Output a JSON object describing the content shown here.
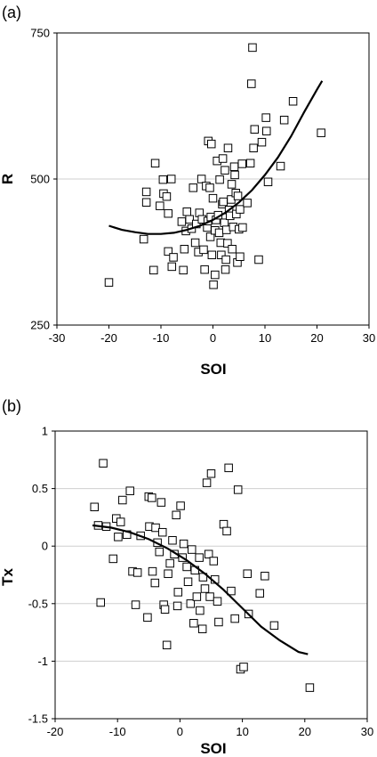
{
  "chart_data": [
    {
      "panel_label": "(a)",
      "type": "scatter",
      "xlabel": "SOI",
      "ylabel": "R",
      "xlim": [
        -30,
        30
      ],
      "ylim": [
        250,
        750
      ],
      "xticks": [
        -30,
        -20,
        -10,
        0,
        10,
        20,
        30
      ],
      "yticks": [
        250,
        500,
        750
      ],
      "grid": "horizontal",
      "points": [
        [
          -20.0,
          323
        ],
        [
          -13.3,
          397
        ],
        [
          -12.8,
          460
        ],
        [
          -12.8,
          478
        ],
        [
          -11.4,
          344
        ],
        [
          -11.1,
          527
        ],
        [
          -10.2,
          454
        ],
        [
          -9.6,
          499
        ],
        [
          -9.5,
          475
        ],
        [
          -8.9,
          470
        ],
        [
          -8.6,
          376
        ],
        [
          -8.6,
          441
        ],
        [
          -8.0,
          500
        ],
        [
          -7.9,
          350
        ],
        [
          -7.6,
          366
        ],
        [
          -6.0,
          427
        ],
        [
          -5.7,
          344
        ],
        [
          -5.5,
          380
        ],
        [
          -5.2,
          411
        ],
        [
          -5.0,
          444
        ],
        [
          -4.5,
          431
        ],
        [
          -4.1,
          415
        ],
        [
          -3.8,
          485
        ],
        [
          -3.4,
          391
        ],
        [
          -3.2,
          423
        ],
        [
          -2.8,
          375
        ],
        [
          -2.6,
          442
        ],
        [
          -2.2,
          500
        ],
        [
          -2.1,
          431
        ],
        [
          -1.8,
          379
        ],
        [
          -1.6,
          345
        ],
        [
          -1.3,
          488
        ],
        [
          -1.1,
          417
        ],
        [
          -1.0,
          428
        ],
        [
          -0.9,
          565
        ],
        [
          -0.6,
          485
        ],
        [
          -0.5,
          401
        ],
        [
          -0.4,
          435
        ],
        [
          -0.3,
          560
        ],
        [
          -0.2,
          370
        ],
        [
          0.0,
          467
        ],
        [
          0.1,
          319
        ],
        [
          0.4,
          336
        ],
        [
          0.4,
          412
        ],
        [
          0.6,
          430
        ],
        [
          0.8,
          531
        ],
        [
          1.0,
          438
        ],
        [
          1.2,
          408
        ],
        [
          1.3,
          499
        ],
        [
          1.5,
          391
        ],
        [
          1.6,
          370
        ],
        [
          1.8,
          457
        ],
        [
          1.9,
          535
        ],
        [
          2.0,
          461
        ],
        [
          2.2,
          425
        ],
        [
          2.3,
          515
        ],
        [
          2.4,
          345
        ],
        [
          2.5,
          362
        ],
        [
          2.6,
          413
        ],
        [
          2.8,
          390
        ],
        [
          2.9,
          553
        ],
        [
          3.1,
          447
        ],
        [
          3.3,
          437
        ],
        [
          3.5,
          465
        ],
        [
          3.6,
          491
        ],
        [
          3.7,
          380
        ],
        [
          3.9,
          418
        ],
        [
          4.1,
          521
        ],
        [
          4.2,
          507
        ],
        [
          4.4,
          476
        ],
        [
          4.5,
          440
        ],
        [
          4.7,
          357
        ],
        [
          4.8,
          471
        ],
        [
          5.0,
          414
        ],
        [
          5.2,
          448
        ],
        [
          5.2,
          367
        ],
        [
          5.6,
          526
        ],
        [
          5.7,
          417
        ],
        [
          6.6,
          459
        ],
        [
          7.2,
          527
        ],
        [
          7.4,
          663
        ],
        [
          7.6,
          725
        ],
        [
          7.8,
          553
        ],
        [
          8.0,
          585
        ],
        [
          8.8,
          362
        ],
        [
          9.4,
          563
        ],
        [
          10.2,
          605
        ],
        [
          10.3,
          582
        ],
        [
          10.6,
          495
        ],
        [
          13.0,
          522
        ],
        [
          13.7,
          601
        ],
        [
          15.4,
          633
        ],
        [
          20.8,
          579
        ]
      ],
      "fit": [
        [
          -20.0,
          420
        ],
        [
          -17.5,
          413
        ],
        [
          -15.0,
          409
        ],
        [
          -12.5,
          406
        ],
        [
          -10.0,
          406
        ],
        [
          -7.5,
          408
        ],
        [
          -5.0,
          413
        ],
        [
          -2.5,
          420
        ],
        [
          0.0,
          430
        ],
        [
          2.5,
          443
        ],
        [
          5.0,
          460
        ],
        [
          7.5,
          481
        ],
        [
          10.0,
          507
        ],
        [
          12.5,
          537
        ],
        [
          15.0,
          573
        ],
        [
          17.5,
          614
        ],
        [
          20.0,
          653
        ],
        [
          21.0,
          668
        ]
      ]
    },
    {
      "panel_label": "(b)",
      "type": "scatter",
      "xlabel": "SOI",
      "ylabel": "Tx",
      "xlim": [
        -20,
        30
      ],
      "ylim": [
        -1.5,
        1
      ],
      "xticks": [
        -20,
        -10,
        0,
        10,
        20,
        30
      ],
      "yticks": [
        -1.5,
        -1,
        -0.5,
        0,
        0.5,
        1
      ],
      "grid": "horizontal",
      "points": [
        [
          -13.7,
          0.34
        ],
        [
          -13.1,
          0.18
        ],
        [
          -12.7,
          -0.49
        ],
        [
          -12.3,
          0.72
        ],
        [
          -11.8,
          0.17
        ],
        [
          -10.7,
          -0.11
        ],
        [
          -10.2,
          0.24
        ],
        [
          -9.9,
          0.08
        ],
        [
          -9.5,
          0.21
        ],
        [
          -9.2,
          0.4
        ],
        [
          -8.5,
          0.1
        ],
        [
          -8.0,
          0.48
        ],
        [
          -7.6,
          -0.22
        ],
        [
          -7.1,
          -0.51
        ],
        [
          -6.8,
          -0.23
        ],
        [
          -6.3,
          0.09
        ],
        [
          -5.2,
          -0.62
        ],
        [
          -5.0,
          0.43
        ],
        [
          -4.9,
          0.17
        ],
        [
          -4.5,
          0.42
        ],
        [
          -4.4,
          -0.22
        ],
        [
          -4.0,
          -0.32
        ],
        [
          -3.9,
          0.16
        ],
        [
          -3.6,
          0.03
        ],
        [
          -3.3,
          -0.05
        ],
        [
          -3.0,
          0.38
        ],
        [
          -2.8,
          0.12
        ],
        [
          -2.6,
          -0.51
        ],
        [
          -2.4,
          -0.55
        ],
        [
          -2.1,
          -0.86
        ],
        [
          -1.9,
          -0.24
        ],
        [
          -1.6,
          -0.15
        ],
        [
          -1.2,
          0.05
        ],
        [
          -0.9,
          -0.07
        ],
        [
          -0.6,
          0.27
        ],
        [
          -0.4,
          -0.52
        ],
        [
          -0.3,
          -0.4
        ],
        [
          0.1,
          0.35
        ],
        [
          0.4,
          -0.1
        ],
        [
          0.6,
          0.02
        ],
        [
          1.1,
          -0.18
        ],
        [
          1.3,
          -0.31
        ],
        [
          1.7,
          -0.5
        ],
        [
          1.9,
          -0.03
        ],
        [
          2.2,
          -0.67
        ],
        [
          2.4,
          -0.21
        ],
        [
          2.7,
          -0.44
        ],
        [
          3.1,
          -0.1
        ],
        [
          3.2,
          -0.56
        ],
        [
          3.6,
          -0.72
        ],
        [
          3.7,
          -0.27
        ],
        [
          4.0,
          -0.37
        ],
        [
          4.3,
          0.55
        ],
        [
          4.6,
          -0.07
        ],
        [
          4.8,
          -0.44
        ],
        [
          5.0,
          0.63
        ],
        [
          5.4,
          -0.13
        ],
        [
          5.6,
          -0.29
        ],
        [
          6.0,
          -0.48
        ],
        [
          6.2,
          -0.66
        ],
        [
          7.0,
          0.19
        ],
        [
          7.5,
          0.13
        ],
        [
          7.8,
          0.68
        ],
        [
          8.2,
          -0.39
        ],
        [
          8.8,
          -0.63
        ],
        [
          9.3,
          0.49
        ],
        [
          9.7,
          -1.07
        ],
        [
          10.2,
          -1.05
        ],
        [
          10.8,
          -0.24
        ],
        [
          11.0,
          -0.59
        ],
        [
          12.8,
          -0.41
        ],
        [
          13.6,
          -0.26
        ],
        [
          15.1,
          -0.69
        ],
        [
          20.8,
          -1.23
        ]
      ],
      "fit": [
        [
          -14.0,
          0.18
        ],
        [
          -11.0,
          0.16
        ],
        [
          -8.0,
          0.12
        ],
        [
          -5.0,
          0.06
        ],
        [
          -2.0,
          -0.02
        ],
        [
          1.0,
          -0.12
        ],
        [
          4.0,
          -0.24
        ],
        [
          7.0,
          -0.38
        ],
        [
          10.0,
          -0.54
        ],
        [
          13.0,
          -0.7
        ],
        [
          16.0,
          -0.82
        ],
        [
          19.0,
          -0.92
        ],
        [
          20.5,
          -0.94
        ]
      ]
    }
  ]
}
